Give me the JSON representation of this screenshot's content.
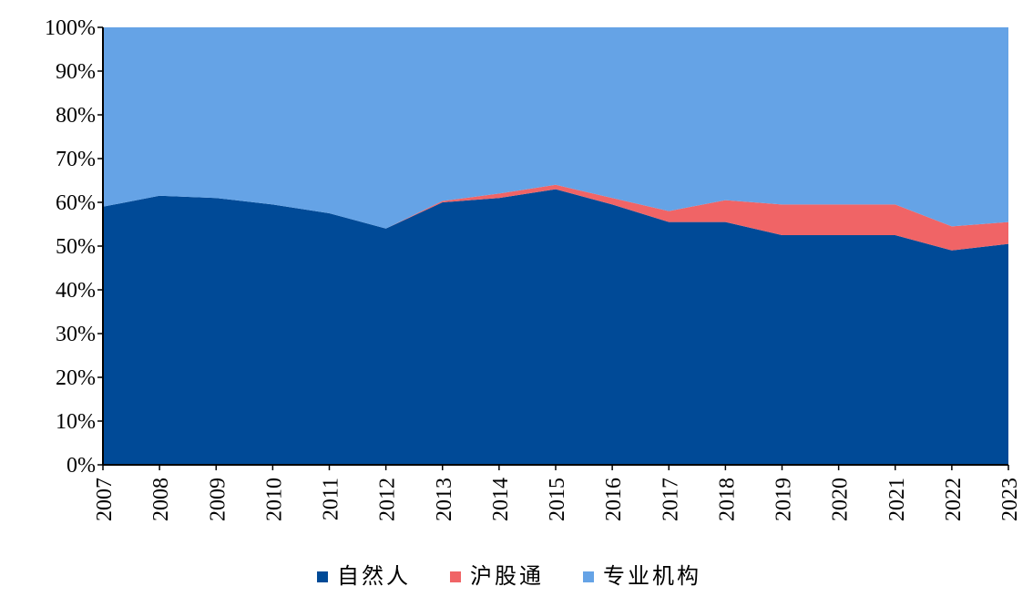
{
  "chart_data": {
    "type": "area",
    "stacked": true,
    "percent": true,
    "title": "",
    "xlabel": "",
    "ylabel": "",
    "x": [
      "2007",
      "2008",
      "2009",
      "2010",
      "2011",
      "2012",
      "2013",
      "2014",
      "2015",
      "2016",
      "2017",
      "2018",
      "2019",
      "2020",
      "2021",
      "2022",
      "2023"
    ],
    "ylim": [
      0,
      100
    ],
    "y_ticks": [
      "0%",
      "10%",
      "20%",
      "30%",
      "40%",
      "50%",
      "60%",
      "70%",
      "80%",
      "90%",
      "100%"
    ],
    "grid": false,
    "legend_position": "bottom",
    "series": [
      {
        "name": "自然人",
        "color": "#004A97",
        "values": [
          59,
          61.5,
          61,
          59.5,
          57.5,
          54,
          60,
          61,
          63,
          59.5,
          55.5,
          55.5,
          52.5,
          52.5,
          52.5,
          49,
          50.5
        ]
      },
      {
        "name": "沪股通",
        "color": "#F06466",
        "values": [
          0,
          0,
          0,
          0,
          0,
          0,
          0.3,
          1,
          1,
          1.5,
          2.5,
          5,
          7,
          7,
          7,
          5.5,
          5
        ]
      },
      {
        "name": "专业机构",
        "color": "#65A3E6",
        "values": [
          41,
          38.5,
          39,
          40.5,
          42.5,
          46,
          39.7,
          38,
          36,
          39,
          42,
          39.5,
          40.5,
          40.5,
          40.5,
          45.5,
          44.5
        ]
      }
    ]
  }
}
